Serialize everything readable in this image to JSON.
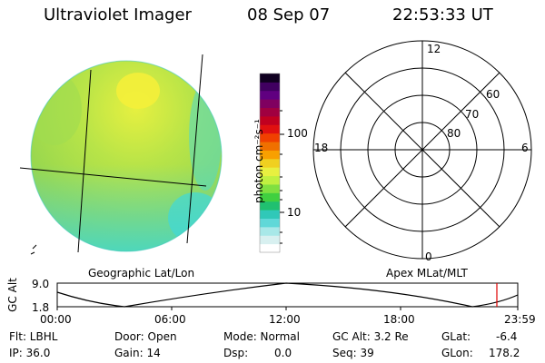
{
  "header": {
    "instrument": "Ultraviolet Imager",
    "date": "08 Sep 07",
    "time": "22:53:33 UT"
  },
  "colorbar": {
    "unit_label": "photon cm⁻²s⁻¹",
    "tick_100": "100",
    "tick_10": "10",
    "colors": [
      "#ffffff",
      "#d8f0f0",
      "#a8e8e8",
      "#60d8d8",
      "#30c8b8",
      "#20c070",
      "#40d040",
      "#80e040",
      "#c0f040",
      "#e8f040",
      "#f0d020",
      "#f8a000",
      "#f07000",
      "#f04000",
      "#e01010",
      "#c00020",
      "#a00040",
      "#800060",
      "#600080",
      "#400060",
      "#100020"
    ]
  },
  "polar_plot": {
    "lat_labels": [
      "80",
      "70",
      "60"
    ],
    "mlt_labels": {
      "top": "12",
      "left": "18",
      "right": "6",
      "bottom": "0"
    }
  },
  "captions": {
    "geographic": "Geographic Lat/Lon",
    "apex": "Apex MLat/MLT"
  },
  "alt_plot": {
    "axis_label": "GC Alt",
    "y_top": "9.0",
    "y_bottom": "1.8",
    "x_ticks": [
      "00:00",
      "06:00",
      "12:00",
      "18:00",
      "23:59"
    ],
    "cursor_color": "#e00000"
  },
  "status": {
    "flt": "Flt: LBHL",
    "ip": "IP: 36.0",
    "door": "Door: Open",
    "gain": "Gain: 14",
    "mode": "Mode: Normal",
    "dsp_label": "Dsp:",
    "dsp_value": "0.0",
    "gc_alt": "GC Alt: 3.2 Re",
    "seq": "Seq: 39",
    "glat_label": "GLat:",
    "glat_value": "-6.4",
    "glon_label": "GLon:",
    "glon_value": "178.2"
  }
}
